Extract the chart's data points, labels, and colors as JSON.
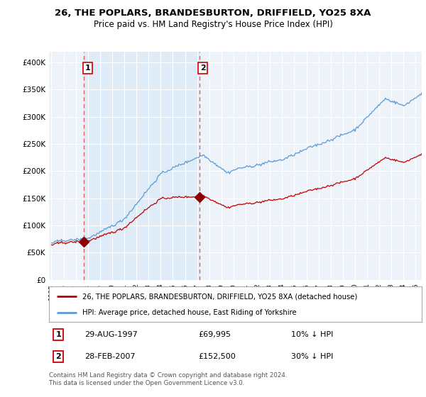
{
  "title1": "26, THE POPLARS, BRANDESBURTON, DRIFFIELD, YO25 8XA",
  "title2": "Price paid vs. HM Land Registry's House Price Index (HPI)",
  "legend_line1": "26, THE POPLARS, BRANDESBURTON, DRIFFIELD, YO25 8XA (detached house)",
  "legend_line2": "HPI: Average price, detached house, East Riding of Yorkshire",
  "transaction1_date": "29-AUG-1997",
  "transaction1_price": "£69,995",
  "transaction1_hpi": "10% ↓ HPI",
  "transaction1_year": 1997.67,
  "transaction1_value": 69995,
  "transaction2_date": "28-FEB-2007",
  "transaction2_price": "£152,500",
  "transaction2_hpi": "30% ↓ HPI",
  "transaction2_year": 2007.17,
  "transaction2_value": 152500,
  "hpi_color": "#5b9bd5",
  "price_color": "#c00000",
  "vline_color": "#e06060",
  "shading_color": "#dce9f5",
  "dot_color": "#8b0000",
  "background_color": "#eef3fa",
  "grid_color": "#ffffff",
  "ylim": [
    0,
    420000
  ],
  "xlim_start": 1994.8,
  "xlim_end": 2025.5,
  "footer": "Contains HM Land Registry data © Crown copyright and database right 2024.\nThis data is licensed under the Open Government Licence v3.0."
}
